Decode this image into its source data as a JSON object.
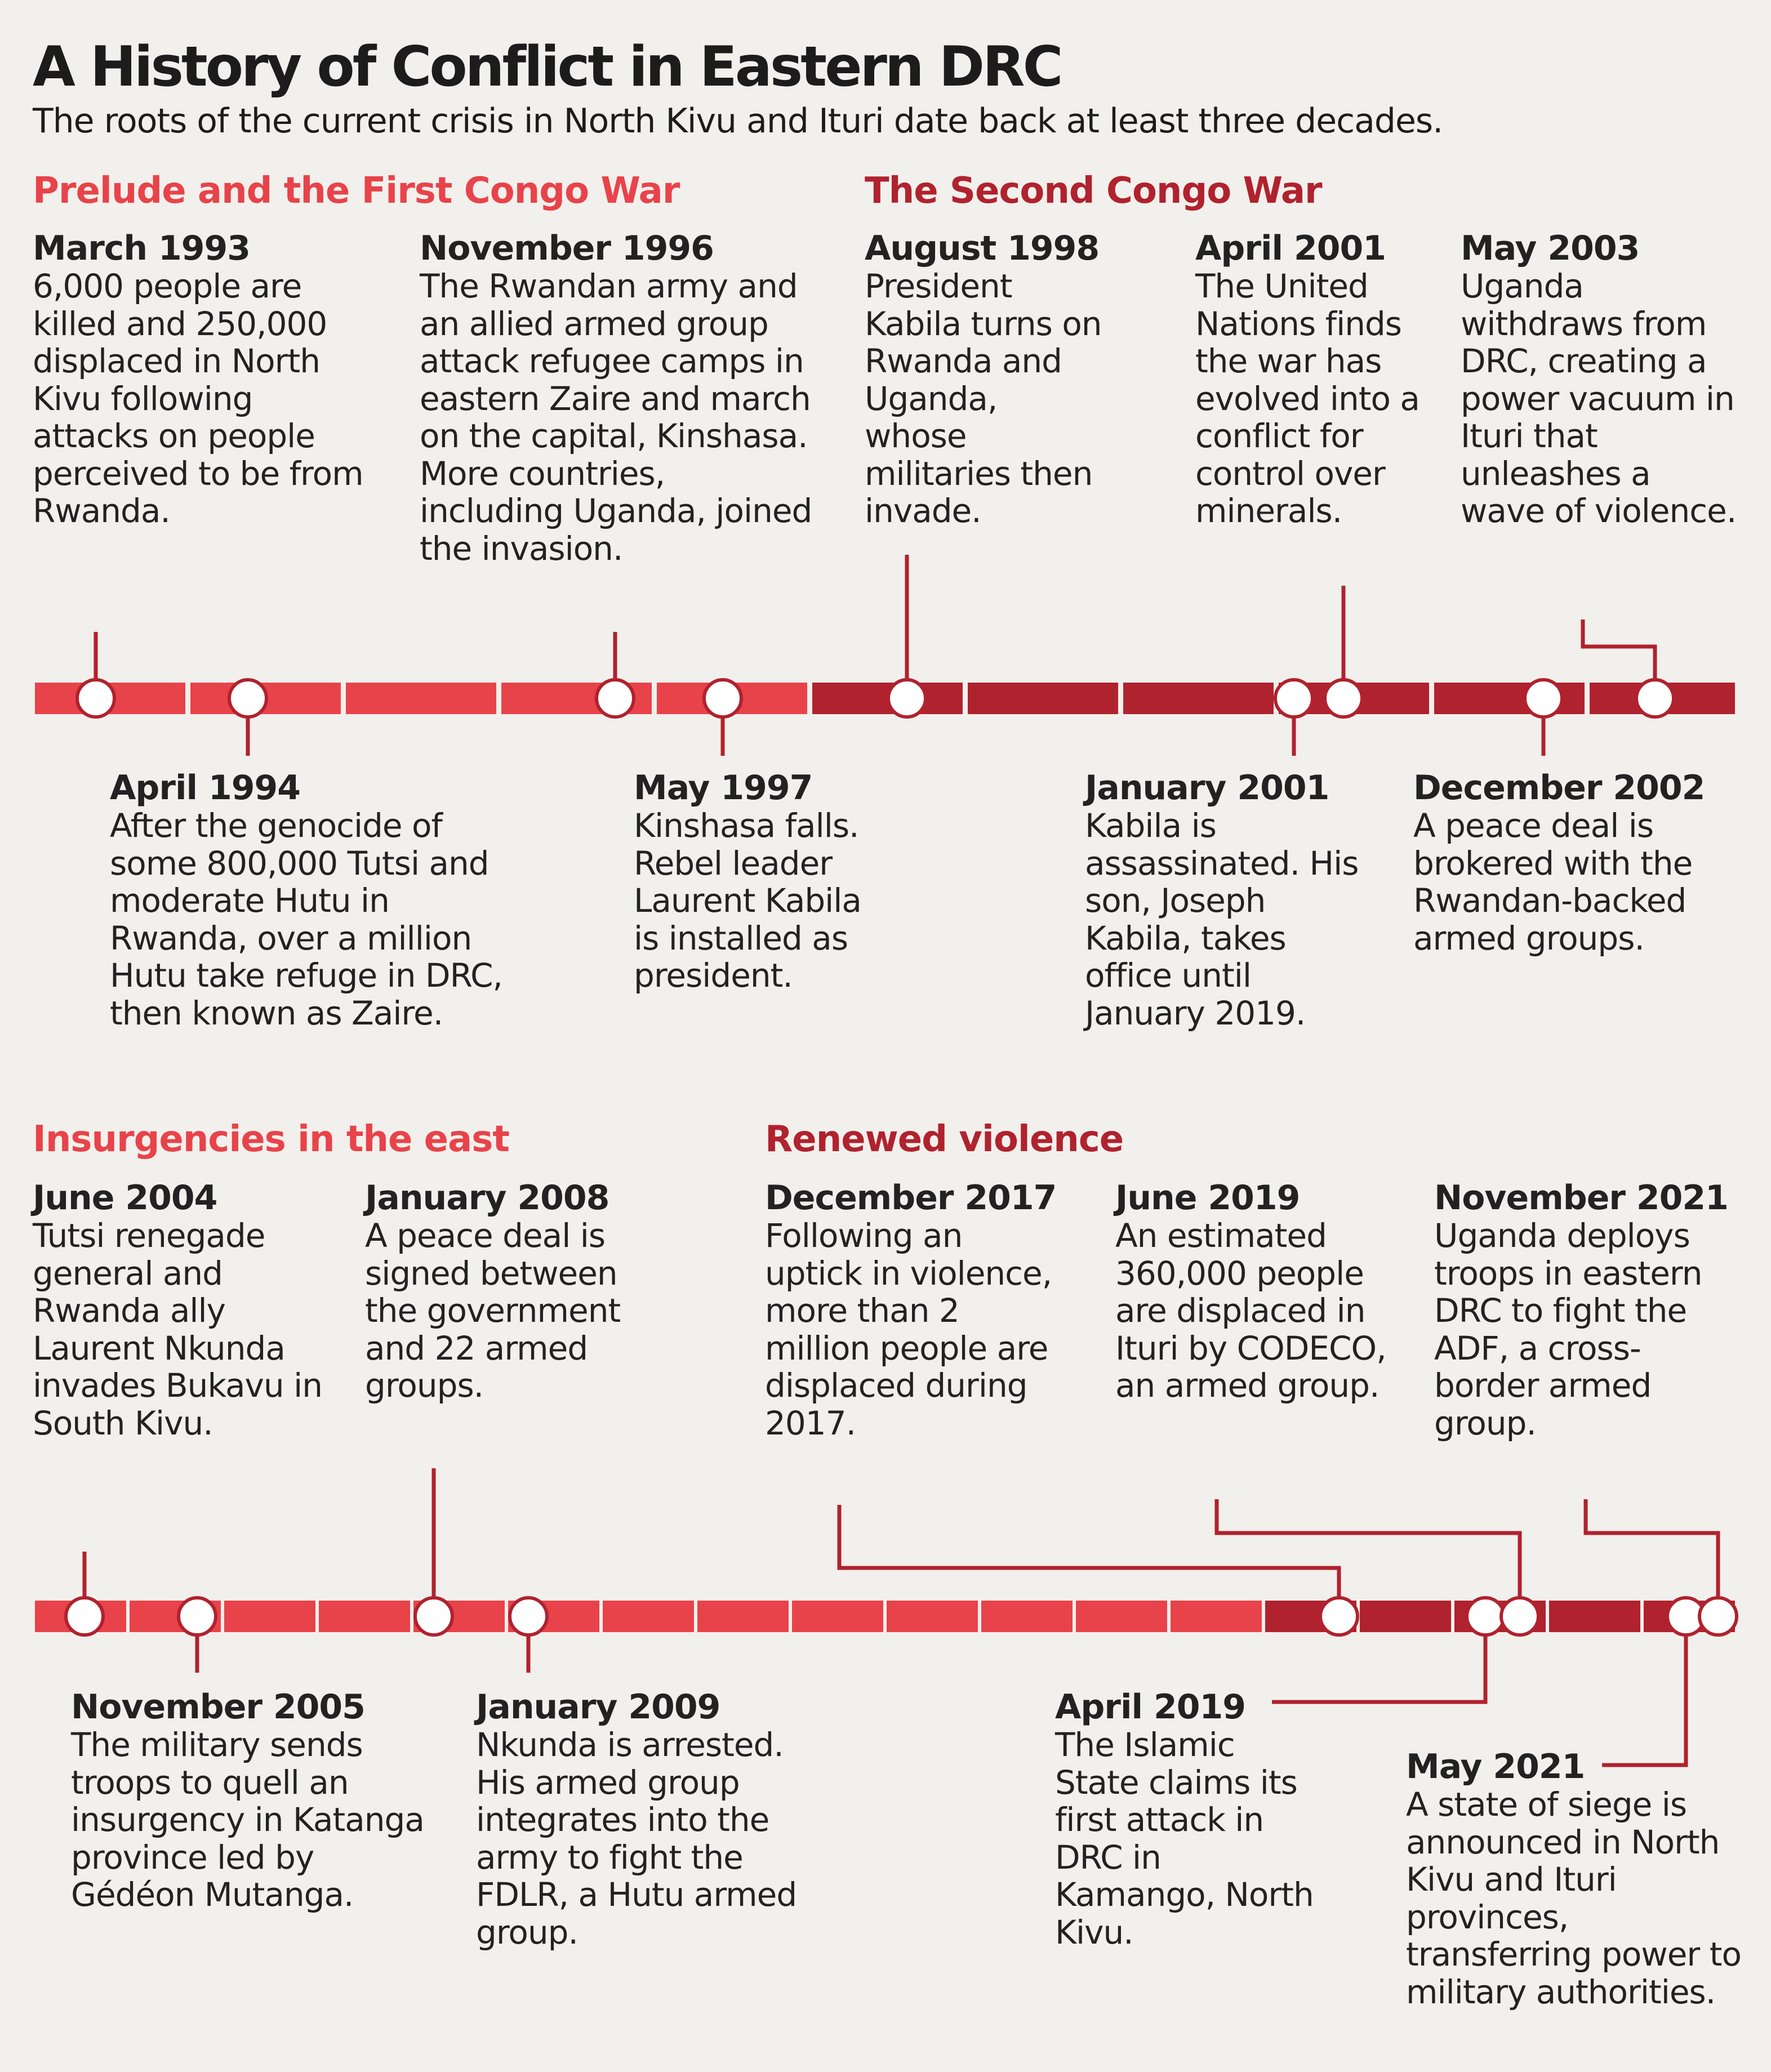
{
  "title": "A History of Conflict in Eastern DRC",
  "subtitle": "The roots of the current crisis in North Kivu and Ituri date back at least three decades.",
  "colors": {
    "light_red": "#e8434a",
    "dark_red": "#b0222e",
    "background": "#f2f0ec",
    "text": "#222222"
  },
  "eras": {
    "first_war": "Prelude and the First Congo War",
    "second_war": "The Second Congo War",
    "insurgencies": "Insurgencies in the east",
    "renewed": "Renewed violence"
  },
  "events": {
    "mar1993": {
      "date": "March 1993",
      "desc": "6,000 people are killed and 250,000 displaced in North Kivu following attacks on people perceived to be from Rwanda."
    },
    "apr1994": {
      "date": "April 1994",
      "desc": "After the genocide of some 800,000 Tutsi and moderate Hutu in Rwanda, over a million Hutu take refuge in DRC, then known as Zaire."
    },
    "nov1996": {
      "date": "November 1996",
      "desc": "The Rwandan army and an allied armed group attack refugee camps in eastern Zaire and march on the capital, Kinshasa. More countries, including Uganda, joined the invasion."
    },
    "may1997": {
      "date": "May 1997",
      "desc": "Kinshasa falls. Rebel leader Laurent Kabila is installed as president."
    },
    "aug1998": {
      "date": "August 1998",
      "desc": "President Kabila turns on Rwanda and Uganda, whose militaries then invade."
    },
    "jan2001": {
      "date": "January 2001",
      "desc": "Kabila is assassinated. His son, Joseph Kabila, takes office until January 2019."
    },
    "apr2001": {
      "date": "April 2001",
      "desc": "The United Nations finds the war has evolved into a conflict for control over minerals."
    },
    "dec2002": {
      "date": "December 2002",
      "desc": "A peace deal is brokered with the Rwandan-backed armed groups."
    },
    "may2003": {
      "date": "May 2003",
      "desc": "Uganda withdraws from DRC, creating a power vacuum in Ituri that unleashes a wave of violence."
    },
    "jun2004": {
      "date": "June 2004",
      "desc": "Tutsi renegade general and Rwanda ally Laurent Nkunda invades Bukavu in South Kivu."
    },
    "nov2005": {
      "date": "November 2005",
      "desc": "The military sends troops to quell an insurgency in Katanga province led by Gédéon Mutanga."
    },
    "jan2008": {
      "date": "January 2008",
      "desc": "A peace deal is signed between the government and 22 armed groups."
    },
    "jan2009": {
      "date": "January 2009",
      "desc": "Nkunda is arrested. His armed group integrates into the army to fight the FDLR, a Hutu armed group."
    },
    "dec2017": {
      "date": "December 2017",
      "desc": "Following an uptick in violence, more than 2 million people are displaced during 2017."
    },
    "apr2019": {
      "date": "April 2019",
      "desc": "The Islamic State claims its first attack in DRC in Kamango, North Kivu."
    },
    "jun2019": {
      "date": "June 2019",
      "desc": "An estimated 360,000 people are displaced in Ituri by CODECO, an armed group."
    },
    "may2021": {
      "date": "May 2021",
      "desc": "A state of siege is announced in North Kivu and Ituri provinces, transferring power to military authorities."
    },
    "nov2021": {
      "date": "November 2021",
      "desc": "Uganda deploys troops in eastern DRC to fight the ADF, a cross-border armed group."
    }
  }
}
